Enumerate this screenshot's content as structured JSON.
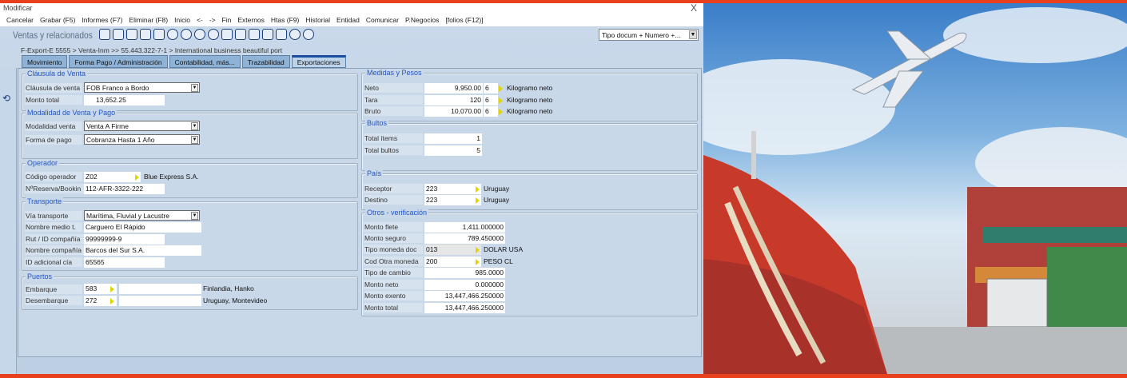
{
  "window": {
    "title": "Modificar",
    "close": "X"
  },
  "menu": [
    "Cancelar",
    "Grabar (F5)",
    "Informes (F7)",
    "Eliminar (F8)",
    "Inicio",
    "<-",
    "->",
    "Fin",
    "Externos",
    "Htas (F9)",
    "Historial",
    "Entidad",
    "Comunicar",
    "P.Negocios",
    "[folios (F12)]"
  ],
  "toolbar": {
    "app_name": "Ventas y relacionados",
    "doc_selector": "Tipo docum + Numero +..."
  },
  "breadcrumb": "F-Export-E 5555 > Venta-Inm  >> 55.443.322-7-1  > International business beautiful port",
  "tabs": [
    "Movimiento",
    "Forma Pago / Administración",
    "Contabilidad, más...",
    "Trazabilidad",
    "Exportaciones"
  ],
  "active_tab": "Exportaciones",
  "clausula": {
    "title": "Cláusula de Venta",
    "clausula_label": "Cláusula de venta",
    "clausula_value": "FOB  Franco a Bordo",
    "monto_label": "Monto total",
    "monto_value": "13,652.25"
  },
  "modalidad": {
    "title": "Modalidad de Venta y Pago",
    "modalidad_label": "Modalidad venta",
    "modalidad_value": "Venta A Firme",
    "forma_label": "Forma de pago",
    "forma_value": "Cobranza Hasta 1 Año"
  },
  "operador": {
    "title": "Operador",
    "codigo_label": "Código operador",
    "codigo_value": "Z02",
    "codigo_name": "Blue Express S.A.",
    "reserva_label": "NºReserva/Bookin",
    "reserva_value": "112-AFR-3322-222"
  },
  "transporte": {
    "title": "Transporte",
    "via_label": "Vía transporte",
    "via_value": "Marítima, Fluvial y Lacustre",
    "medio_label": "Nombre medio t.",
    "medio_value": "Carguero El Rápido",
    "rut_label": "Rut / ID compañía",
    "rut_value": "99999999-9",
    "compania_label": "Nombre compañía",
    "compania_value": "Barcos del Sur S.A.",
    "idadic_label": "ID adicional cía",
    "idadic_value": "65565"
  },
  "puertos": {
    "title": "Puertos",
    "embarque_label": "Embarque",
    "embarque_code": "583",
    "embarque_name": "Finlandia, Hanko",
    "desembarque_label": "Desembarque",
    "desembarque_code": "272",
    "desembarque_name": "Uruguay, Montevideo"
  },
  "medidas": {
    "title": "Medidas y Pesos",
    "rows": [
      {
        "label": "Neto",
        "value": "9,950.00",
        "unit_code": "6",
        "unit": "Kilogramo neto"
      },
      {
        "label": "Tara",
        "value": "120",
        "unit_code": "6",
        "unit": "Kilogramo neto"
      },
      {
        "label": "Bruto",
        "value": "10,070.00",
        "unit_code": "6",
        "unit": "Kilogramo neto"
      }
    ]
  },
  "bultos": {
    "title": "Bultos",
    "items_label": "Total ítems",
    "items_value": "1",
    "bultos_label": "Total bultos",
    "bultos_value": "5"
  },
  "pais": {
    "title": "País",
    "receptor_label": "Receptor",
    "receptor_code": "223",
    "receptor_name": "Uruguay",
    "destino_label": "Destino",
    "destino_code": "223",
    "destino_name": "Uruguay"
  },
  "otros": {
    "title": "Otros - verificación",
    "flete_label": "Monto flete",
    "flete_value": "1,411.000000",
    "seguro_label": "Monto seguro",
    "seguro_value": "789.450000",
    "moneda_label": "Tipo moneda doc",
    "moneda_code": "013",
    "moneda_name": "DOLAR USA",
    "otra_label": "Cod Otra moneda",
    "otra_code": "200",
    "otra_name": "PESO CL",
    "cambio_label": "Tipo de cambio",
    "cambio_value": "985.0000",
    "neto_label": "Monto neto",
    "neto_value": "0.000000",
    "exento_label": "Monto exento",
    "exento_value": "13,447,466.250000",
    "total_label": "Monto total",
    "total_value": "13,447,466.250000"
  },
  "colors": {
    "accent_bar": "#e8401c",
    "panel": "#c8d8e8",
    "group_title": "#2356c8"
  }
}
